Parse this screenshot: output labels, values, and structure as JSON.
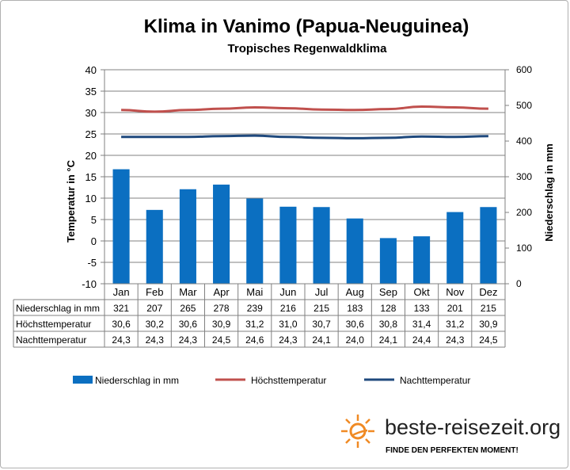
{
  "title": "Klima in Vanimo (Papua-Neuguinea)",
  "subtitle": "Tropisches Regenwaldklima",
  "colors": {
    "precip": "#0b6fc1",
    "tmax": "#c0504d",
    "tnight": "#1f497d",
    "grid": "#808080"
  },
  "chart_data": {
    "type": "bar",
    "categories": [
      "Jan",
      "Feb",
      "Mar",
      "Apr",
      "Mai",
      "Jun",
      "Jul",
      "Aug",
      "Sep",
      "Okt",
      "Nov",
      "Dez"
    ],
    "ylabel": "Temperatur in °C",
    "y2label": "Niederschlag in mm",
    "ylim": [
      -10,
      40
    ],
    "y2lim": [
      0,
      600
    ],
    "yticks": [
      "40",
      "35",
      "30",
      "25",
      "20",
      "15",
      "10",
      "5",
      "0",
      "-5",
      "-10"
    ],
    "y2ticks": [
      "600",
      "500",
      "400",
      "300",
      "200",
      "100",
      "0"
    ],
    "series": [
      {
        "name": "Niederschlag in mm",
        "kind": "bar",
        "axis": "right",
        "values": [
          321,
          207,
          265,
          278,
          239,
          216,
          215,
          183,
          128,
          133,
          201,
          215
        ],
        "labels": [
          "321",
          "207",
          "265",
          "278",
          "239",
          "216",
          "215",
          "183",
          "128",
          "133",
          "201",
          "215"
        ]
      },
      {
        "name": "Höchsttemperatur",
        "kind": "line",
        "axis": "left",
        "values": [
          30.6,
          30.2,
          30.6,
          30.9,
          31.2,
          31.0,
          30.7,
          30.6,
          30.8,
          31.4,
          31.2,
          30.9
        ],
        "labels": [
          "30,6",
          "30,2",
          "30,6",
          "30,9",
          "31,2",
          "31,0",
          "30,7",
          "30,6",
          "30,8",
          "31,4",
          "31,2",
          "30,9"
        ]
      },
      {
        "name": "Nachttemperatur",
        "kind": "line",
        "axis": "left",
        "values": [
          24.3,
          24.3,
          24.3,
          24.5,
          24.6,
          24.3,
          24.1,
          24.0,
          24.1,
          24.4,
          24.3,
          24.5
        ],
        "labels": [
          "24,3",
          "24,3",
          "24,3",
          "24,5",
          "24,6",
          "24,3",
          "24,1",
          "24,0",
          "24,1",
          "24,4",
          "24,3",
          "24,5"
        ]
      }
    ],
    "legend_position": "bottom",
    "grid": true
  },
  "branding": {
    "logo_text": "beste-reisezeit.org",
    "slogan": "FINDE DEN PERFEKTEN MOMENT!"
  }
}
